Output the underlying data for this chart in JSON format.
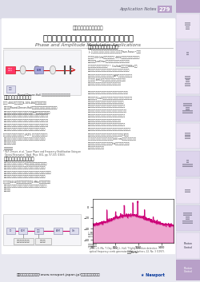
{
  "page_title_sub": "アプリケーションノート",
  "page_title_main": "位相および振幅変調器のアプリケーション",
  "page_title_en": "Phase and Amplitude Modulator Applications",
  "header_text": "Application Notes",
  "header_num": "279",
  "section1_title": "レーザー周波数安定化",
  "section2_title": "高周波数光チョッピング",
  "section3_title": "ドラベルツ用コム発生器",
  "footer_text": "詳細は弊社ホームページ(www.newport.japan.jp)にてご確認ください",
  "footer_brand": "Newport",
  "bg_color": "#e8e8f0",
  "header_bg": "#c8c8d8",
  "tab_color": "#b8a0c8",
  "white_bg": "#ffffff",
  "body_text_color": "#333333",
  "title_color": "#000000",
  "accent_color": "#cc0077",
  "tab_labels": [
    "レーザー\n測定器",
    "光源",
    "光学部品\nおよび\nシステム",
    "光ファイバー\nおよび\nコンポーネント",
    "電気光学\nデバイス",
    "偏光\nコンポーネント",
    "光検出器",
    "アライメント\nおよび\nポジショニング",
    "Photon\nControl"
  ]
}
